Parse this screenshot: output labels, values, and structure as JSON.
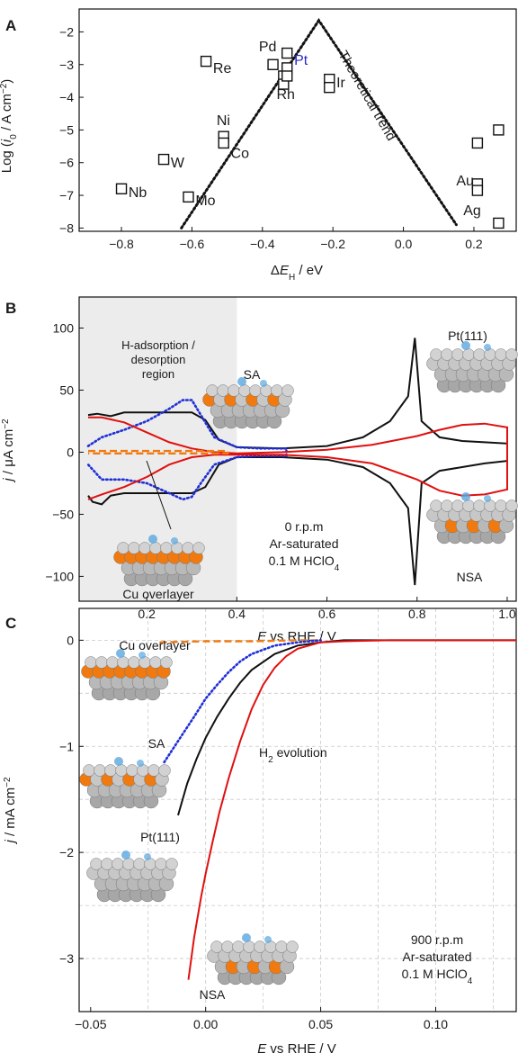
{
  "chart_data": [
    {
      "panel_label": "A",
      "type": "scatter",
      "xlabel": "ΔE_H / eV",
      "ylabel": "Log (i_0 / A cm^-2)",
      "xlim": [
        -0.92,
        0.32
      ],
      "ylim": [
        -8.1,
        -1.3
      ],
      "xticks": [
        -0.8,
        -0.6,
        -0.4,
        -0.2,
        0.0,
        0.2
      ],
      "xtick_labels": [
        "−0.8",
        "−0.6",
        "−0.4",
        "−0.2",
        "0.0",
        "0.2"
      ],
      "yticks": [
        -8,
        -7,
        -6,
        -5,
        -4,
        -3,
        -2
      ],
      "ytick_labels": [
        "−8",
        "−7",
        "−6",
        "−5",
        "−4",
        "−3",
        "−2"
      ],
      "points": [
        {
          "x": -0.8,
          "y": -6.8
        },
        {
          "x": -0.68,
          "y": -5.9
        },
        {
          "x": -0.61,
          "y": -7.05
        },
        {
          "x": -0.56,
          "y": -2.9
        },
        {
          "x": -0.51,
          "y": -5.2
        },
        {
          "x": -0.51,
          "y": -5.4
        },
        {
          "x": -0.37,
          "y": -3.0
        },
        {
          "x": -0.34,
          "y": -3.35
        },
        {
          "x": -0.34,
          "y": -3.6
        },
        {
          "x": -0.33,
          "y": -2.65
        },
        {
          "x": -0.33,
          "y": -3.1
        },
        {
          "x": -0.33,
          "y": -3.35
        },
        {
          "x": -0.21,
          "y": -3.45
        },
        {
          "x": -0.21,
          "y": -3.7
        },
        {
          "x": 0.21,
          "y": -5.4
        },
        {
          "x": 0.21,
          "y": -6.65
        },
        {
          "x": 0.21,
          "y": -6.85
        },
        {
          "x": 0.27,
          "y": -5.0
        },
        {
          "x": 0.27,
          "y": -7.85
        }
      ],
      "element_labels": [
        {
          "text": "Nb",
          "x": -0.78,
          "y": -7.05
        },
        {
          "text": "W",
          "x": -0.66,
          "y": -6.15
        },
        {
          "text": "Mo",
          "x": -0.59,
          "y": -7.3
        },
        {
          "text": "Re",
          "x": -0.54,
          "y": -3.25
        },
        {
          "text": "Ni",
          "x": -0.53,
          "y": -4.85
        },
        {
          "text": "Co",
          "x": -0.49,
          "y": -5.85
        },
        {
          "text": "Pd",
          "x": -0.41,
          "y": -2.6
        },
        {
          "text": "Pt",
          "x": -0.31,
          "y": -3.0,
          "color": "#2a2acc"
        },
        {
          "text": "Rh",
          "x": -0.36,
          "y": -4.05
        },
        {
          "text": "Ir",
          "x": -0.19,
          "y": -3.7
        },
        {
          "text": "Au",
          "x": 0.15,
          "y": -6.7
        },
        {
          "text": "Ag",
          "x": 0.17,
          "y": -7.6
        }
      ],
      "trend_line": {
        "label": "Theoretical trend",
        "x": [
          -0.63,
          -0.24,
          0.15
        ],
        "y": [
          -8.0,
          -1.65,
          -7.9
        ]
      }
    },
    {
      "panel_label": "B",
      "type": "line",
      "xlabel": "E vs RHE / V",
      "ylabel": "j / μA cm^-2",
      "xlim": [
        0.05,
        1.02
      ],
      "ylim": [
        -120,
        125
      ],
      "xticks": [
        0.2,
        0.4,
        0.6,
        0.8,
        1.0
      ],
      "xtick_labels": [
        "0.2",
        "0.4",
        "0.6",
        "0.8",
        "1.0"
      ],
      "yticks": [
        -100,
        -50,
        0,
        50,
        100
      ],
      "ytick_labels": [
        "−100",
        "−50",
        "0",
        "50",
        "100"
      ],
      "shaded_region": {
        "x": [
          0.05,
          0.4
        ],
        "label": "H-adsorption / desorption region"
      },
      "annotations": [
        "Pt(111)",
        "SA",
        "NSA",
        "Cu overlayer",
        "0 r.p.m",
        "Ar-saturated",
        "0.1 M HClO4"
      ],
      "series": [
        {
          "name": "Pt(111)",
          "color": "#111111",
          "style": "solid",
          "x": [
            0.07,
            0.09,
            0.12,
            0.15,
            0.2,
            0.25,
            0.3,
            0.33,
            0.36,
            0.4,
            0.5,
            0.6,
            0.68,
            0.74,
            0.78,
            0.795,
            0.81,
            0.85,
            0.9,
            0.95,
            1.0
          ],
          "y": [
            30,
            31,
            29,
            32,
            32,
            32,
            32,
            26,
            10,
            4,
            3,
            5,
            12,
            25,
            45,
            92,
            25,
            12,
            9,
            8,
            7
          ],
          "x_ret": [
            1.0,
            0.95,
            0.9,
            0.85,
            0.81,
            0.795,
            0.78,
            0.74,
            0.68,
            0.6,
            0.5,
            0.4,
            0.36,
            0.33,
            0.3,
            0.25,
            0.2,
            0.15,
            0.12,
            0.1,
            0.08,
            0.07
          ],
          "y_ret": [
            -7,
            -9,
            -12,
            -15,
            -25,
            -107,
            -45,
            -25,
            -12,
            -6,
            -4,
            -4,
            -10,
            -28,
            -33,
            -33,
            -33,
            -33,
            -35,
            -42,
            -40,
            -35
          ]
        },
        {
          "name": "SA",
          "color": "#1f2fd6",
          "style": "dotted",
          "x": [
            0.07,
            0.1,
            0.15,
            0.2,
            0.25,
            0.28,
            0.3,
            0.32,
            0.35,
            0.4,
            0.45,
            0.51
          ],
          "y": [
            5,
            12,
            18,
            25,
            35,
            42,
            42,
            30,
            12,
            4,
            3,
            3
          ],
          "x_ret": [
            0.51,
            0.45,
            0.4,
            0.35,
            0.32,
            0.3,
            0.28,
            0.25,
            0.2,
            0.15,
            0.1,
            0.07
          ],
          "y_ret": [
            -3,
            -3,
            -4,
            -10,
            -25,
            -36,
            -38,
            -33,
            -25,
            -22,
            -22,
            -10
          ]
        },
        {
          "name": "NSA",
          "color": "#e01010",
          "style": "solid",
          "x": [
            0.07,
            0.1,
            0.15,
            0.2,
            0.25,
            0.3,
            0.35,
            0.4,
            0.5,
            0.6,
            0.7,
            0.8,
            0.85,
            0.9,
            0.95,
            1.0
          ],
          "y": [
            28,
            28,
            24,
            16,
            8,
            3,
            0,
            -1,
            0,
            2,
            6,
            13,
            18,
            22,
            23,
            20
          ],
          "x_ret": [
            1.0,
            0.95,
            0.9,
            0.85,
            0.8,
            0.7,
            0.6,
            0.5,
            0.4,
            0.35,
            0.3,
            0.25,
            0.2,
            0.15,
            0.1,
            0.07
          ],
          "y_ret": [
            -30,
            -34,
            -35,
            -31,
            -22,
            -9,
            -4,
            -2,
            -2,
            -2,
            -4,
            -10,
            -20,
            -28,
            -34,
            -38
          ]
        },
        {
          "name": "Cu overlayer",
          "color": "#f07a10",
          "style": "dashed",
          "x": [
            0.07,
            0.2,
            0.3,
            0.38
          ],
          "y": [
            1,
            1,
            1,
            1
          ],
          "x_ret": [
            0.38,
            0.3,
            0.2,
            0.07
          ],
          "y_ret": [
            -1,
            -1,
            -1,
            -1
          ]
        }
      ]
    },
    {
      "panel_label": "C",
      "type": "line",
      "xlabel": "E vs RHE / V",
      "ylabel": "j / mA cm^-2",
      "xlim": [
        -0.055,
        0.135
      ],
      "ylim": [
        -3.5,
        0.3
      ],
      "xticks": [
        -0.05,
        0.0,
        0.05,
        0.1
      ],
      "xtick_labels": [
        "−0.05",
        "0.00",
        "0.05",
        "0.10"
      ],
      "yticks": [
        -3,
        -2,
        -1,
        0
      ],
      "ytick_labels": [
        "−3",
        "−2",
        "−1",
        "0"
      ],
      "grid": true,
      "annotations": [
        "Cu overlayer",
        "SA",
        "H2 evolution",
        "Pt(111)",
        "NSA",
        "900 r.p.m",
        "Ar-saturated",
        "0.1 M HClO4"
      ],
      "series": [
        {
          "name": "Cu overlayer",
          "color": "#f07a10",
          "style": "dashed",
          "x": [
            -0.02,
            0.0,
            0.02,
            0.04,
            0.05
          ],
          "y": [
            -0.02,
            -0.01,
            -0.01,
            0.0,
            0.0
          ]
        },
        {
          "name": "SA",
          "color": "#1f2fd6",
          "style": "dotted",
          "x": [
            -0.018,
            -0.012,
            -0.005,
            0.0,
            0.005,
            0.01,
            0.015,
            0.02,
            0.03,
            0.04,
            0.05
          ],
          "y": [
            -1.15,
            -0.95,
            -0.72,
            -0.55,
            -0.42,
            -0.3,
            -0.2,
            -0.13,
            -0.05,
            -0.02,
            0.0
          ]
        },
        {
          "name": "Pt(111)",
          "color": "#111111",
          "style": "solid",
          "x": [
            -0.012,
            -0.008,
            -0.004,
            0.0,
            0.005,
            0.01,
            0.015,
            0.02,
            0.03,
            0.04,
            0.05,
            0.06,
            0.08,
            0.1,
            0.135
          ],
          "y": [
            -1.65,
            -1.35,
            -1.12,
            -0.92,
            -0.72,
            -0.55,
            -0.4,
            -0.28,
            -0.13,
            -0.05,
            -0.02,
            0.0,
            0.0,
            0.0,
            0.0
          ]
        },
        {
          "name": "NSA",
          "color": "#e01010",
          "style": "solid",
          "x": [
            -0.0075,
            -0.005,
            -0.002,
            0.0,
            0.003,
            0.006,
            0.01,
            0.015,
            0.02,
            0.025,
            0.03,
            0.035,
            0.04,
            0.05,
            0.06,
            0.08,
            0.1,
            0.135
          ],
          "y": [
            -3.2,
            -2.8,
            -2.42,
            -2.2,
            -1.9,
            -1.62,
            -1.3,
            -0.95,
            -0.65,
            -0.42,
            -0.26,
            -0.15,
            -0.08,
            -0.02,
            -0.01,
            0.0,
            0.0,
            0.0
          ]
        }
      ]
    }
  ],
  "colors": {
    "orange": "#f07a10",
    "blue": "#1f2fd6",
    "red": "#e01010",
    "black": "#111111",
    "shade": "#ececec"
  }
}
